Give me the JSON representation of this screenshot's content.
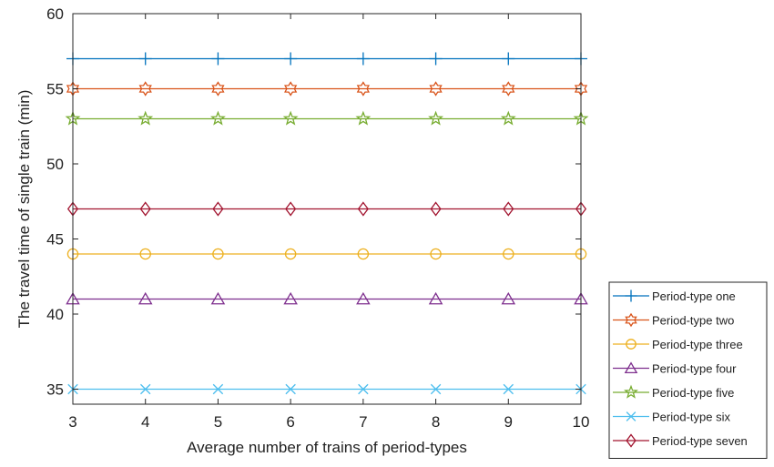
{
  "chart_data": {
    "type": "line",
    "xlabel": "Average number of trains of period-types",
    "ylabel": "The travel time of single train (min)",
    "x": [
      3,
      4,
      5,
      6,
      7,
      8,
      9,
      10
    ],
    "xlim": [
      3,
      10
    ],
    "ylim": [
      34,
      60
    ],
    "yticks": [
      35,
      40,
      45,
      50,
      55,
      60
    ],
    "grid": false,
    "legend_position": "outside-right-bottom",
    "series": [
      {
        "name": "Period-type one",
        "values": [
          57,
          57,
          57,
          57,
          57,
          57,
          57,
          57
        ],
        "color": "#0072BD",
        "marker": "plus"
      },
      {
        "name": "Period-type two",
        "values": [
          55,
          55,
          55,
          55,
          55,
          55,
          55,
          55
        ],
        "color": "#D95319",
        "marker": "hexagram"
      },
      {
        "name": "Period-type three",
        "values": [
          44,
          44,
          44,
          44,
          44,
          44,
          44,
          44
        ],
        "color": "#EDB120",
        "marker": "circle"
      },
      {
        "name": "Period-type four",
        "values": [
          41,
          41,
          41,
          41,
          41,
          41,
          41,
          41
        ],
        "color": "#7E2F8E",
        "marker": "triangle"
      },
      {
        "name": "Period-type five",
        "values": [
          53,
          53,
          53,
          53,
          53,
          53,
          53,
          53
        ],
        "color": "#77AC30",
        "marker": "pentagram"
      },
      {
        "name": "Period-type six",
        "values": [
          35,
          35,
          35,
          35,
          35,
          35,
          35,
          35
        ],
        "color": "#4DBEEE",
        "marker": "x"
      },
      {
        "name": "Period-type seven",
        "values": [
          47,
          47,
          47,
          47,
          47,
          47,
          47,
          47
        ],
        "color": "#A2142F",
        "marker": "diamond"
      }
    ]
  }
}
